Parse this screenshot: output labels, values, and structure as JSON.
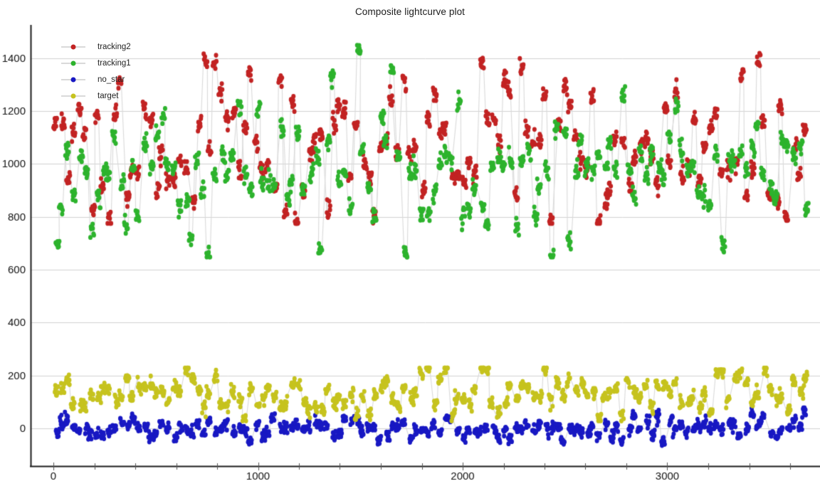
{
  "chart_data": {
    "type": "scatter",
    "title": "Composite lightcurve plot",
    "xlabel": "",
    "ylabel": "",
    "x_range": [
      0,
      3690
    ],
    "y_range_displayed": [
      -140,
      1525
    ],
    "xticks": [
      0,
      1000,
      2000,
      3000
    ],
    "xtick_minor_step": 200,
    "yticks": [
      0,
      200,
      400,
      600,
      800,
      1000,
      1200,
      1400
    ],
    "grid": {
      "horizontal": true,
      "vertical": false,
      "color": "#d2d2d2"
    },
    "axis_color": "#1d1d1d",
    "tick_mark_color": "#555555",
    "tick_label_color": "#111111",
    "connector_line_color": "#dadada",
    "legend_position": "top-left",
    "marker": {
      "rx": 3.0,
      "ry": 3.4
    },
    "sampling": {
      "n_bursts": 128,
      "points_per_burst": 9,
      "burst_x_span": 17,
      "seed": 1337
    },
    "series": [
      {
        "name": "tracking2",
        "color": "#c22323",
        "mean": 1070,
        "burst_sd": 138,
        "within_sd": 21,
        "min": 775,
        "max": 1452,
        "notable_extremes": [
          {
            "x": 960,
            "y": 1345
          },
          {
            "x": 2100,
            "y": 1388
          },
          {
            "x": 2285,
            "y": 1380
          },
          {
            "x": 3030,
            "y": 1290
          },
          {
            "x": 3370,
            "y": 1338
          }
        ]
      },
      {
        "name": "tracking1",
        "color": "#2db32d",
        "mean": 975,
        "burst_sd": 132,
        "within_sd": 21,
        "min": 648,
        "max": 1455,
        "notable_extremes": [
          {
            "x": 30,
            "y": 700
          },
          {
            "x": 1480,
            "y": 1438
          },
          {
            "x": 2450,
            "y": 662
          },
          {
            "x": 3285,
            "y": 692
          }
        ]
      },
      {
        "name": "no_star",
        "color": "#1818c3",
        "mean": 0,
        "burst_sd": 23,
        "within_sd": 13,
        "min": -88,
        "max": 88,
        "notable_extremes": []
      },
      {
        "name": "target",
        "color": "#c6c31e",
        "mean": 125,
        "burst_sd": 36,
        "within_sd": 15,
        "min": 28,
        "max": 228,
        "notable_extremes": [
          {
            "x": 640,
            "y": 224
          },
          {
            "x": 2105,
            "y": 226
          },
          {
            "x": 3480,
            "y": 220
          }
        ]
      }
    ]
  }
}
